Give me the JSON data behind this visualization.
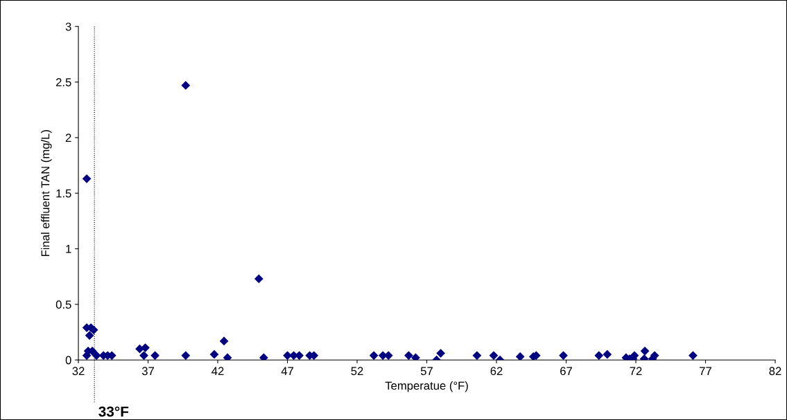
{
  "chart_data": {
    "type": "scatter",
    "xlabel": "Temperatue (°F)",
    "ylabel": "Final effluent TAN (mg/L)",
    "x": [
      32.6,
      32.9,
      33.1,
      32.8,
      32.6,
      32.7,
      33.0,
      33.3,
      33.8,
      34.1,
      34.4,
      36.4,
      36.8,
      36.7,
      37.5,
      39.7,
      41.75,
      42.45,
      42.7,
      44.95,
      45.3,
      47.0,
      47.45,
      47.85,
      48.6,
      48.9,
      53.2,
      53.85,
      54.25,
      55.7,
      56.2,
      57.7,
      58.0,
      60.6,
      61.8,
      62.25,
      63.7,
      64.65,
      64.85,
      66.8,
      69.35,
      69.95,
      71.3,
      71.55,
      71.8,
      71.9,
      72.65,
      72.6,
      73.2,
      73.35,
      76.1,
      32.6,
      39.7
    ],
    "series": [
      {
        "color": "#000080",
        "values": [
          0.29,
          0.29,
          0.27,
          0.22,
          0.04,
          0.08,
          0.08,
          0.04,
          0.04,
          0.04,
          0.04,
          0.1,
          0.11,
          0.04,
          0.04,
          0.04,
          0.05,
          0.17,
          0.02,
          0.73,
          0.02,
          0.04,
          0.04,
          0.04,
          0.04,
          0.04,
          0.04,
          0.04,
          0.04,
          0.04,
          0.02,
          0.0,
          0.06,
          0.04,
          0.04,
          0.0,
          0.03,
          0.03,
          0.04,
          0.04,
          0.04,
          0.05,
          0.02,
          0.01,
          0.01,
          0.04,
          0.08,
          0.01,
          0.01,
          0.04,
          0.04,
          1.63,
          2.47
        ]
      }
    ],
    "xlim": [
      32,
      82
    ],
    "xticks": [
      32,
      37,
      42,
      47,
      52,
      57,
      62,
      67,
      72,
      77,
      82
    ],
    "ylim": [
      0,
      3
    ],
    "yticks": [
      0,
      0.5,
      1,
      1.5,
      2,
      2.5,
      3
    ],
    "ref_lines": [
      {
        "axis": "x",
        "value": 33.15,
        "label": "33°F",
        "color": "#000000",
        "line_style": "dotted"
      }
    ],
    "grid": false,
    "legend": false,
    "marker": "diamond"
  }
}
